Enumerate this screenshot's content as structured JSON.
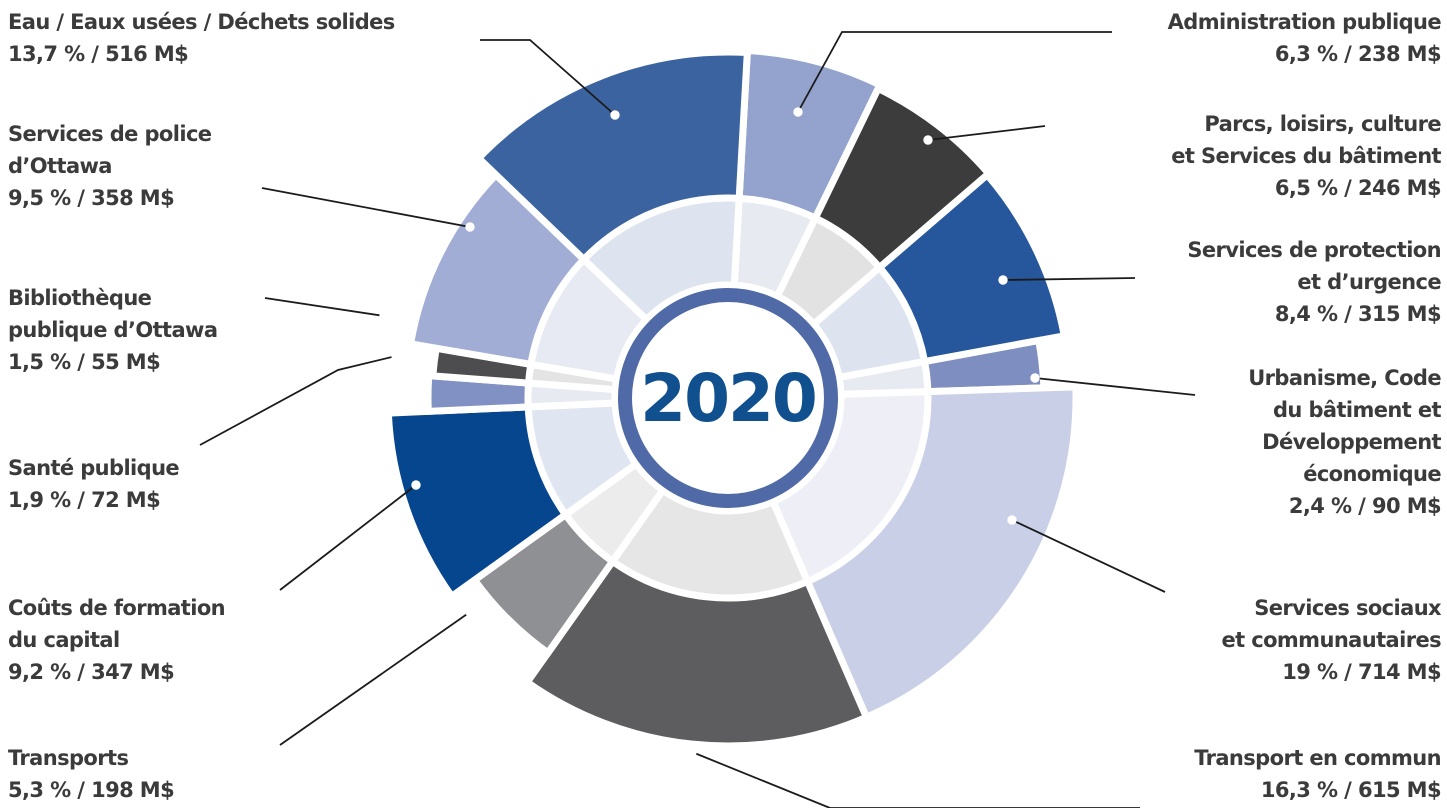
{
  "chart_data": {
    "type": "pie",
    "center_label": "2020",
    "slices": [
      {
        "name": "Administration publique",
        "label_lines": [
          "Administration publique"
        ],
        "percent": 6.3,
        "percent_text": "6,3 %",
        "amount_text": "238 M$",
        "amount": 238,
        "color": "#94a3cd"
      },
      {
        "name": "Parcs, loisirs, culture et Services du bâtiment",
        "label_lines": [
          "Parcs, loisirs, culture",
          "et Services du bâtiment"
        ],
        "percent": 6.5,
        "percent_text": "6,5 %",
        "amount_text": "246 M$",
        "amount": 246,
        "color": "#3c3c3c"
      },
      {
        "name": "Services de protection et d’urgence",
        "label_lines": [
          "Services de protection",
          "et d’urgence"
        ],
        "percent": 8.4,
        "percent_text": "8,4 %",
        "amount_text": "315 M$",
        "amount": 315,
        "color": "#26579c"
      },
      {
        "name": "Urbanisme, Code du bâtiment et Développement économique",
        "label_lines": [
          "Urbanisme, Code",
          "du bâtiment et",
          "Développement",
          "économique"
        ],
        "percent": 2.4,
        "percent_text": "2,4 %",
        "amount_text": "90 M$",
        "amount": 90,
        "color": "#7f8ec0"
      },
      {
        "name": "Services sociaux et communautaires",
        "label_lines": [
          "Services sociaux",
          "et communautaires"
        ],
        "percent": 19,
        "percent_text": "19 %",
        "amount_text": "714 M$",
        "amount": 714,
        "color": "#c8cfe6"
      },
      {
        "name": "Transport en commun",
        "label_lines": [
          "Transport en commun"
        ],
        "percent": 16.3,
        "percent_text": "16,3 %",
        "amount_text": "615 M$",
        "amount": 615,
        "color": "#5d5d5f"
      },
      {
        "name": "Transports",
        "label_lines": [
          "Transports"
        ],
        "percent": 5.3,
        "percent_text": "5,3 %",
        "amount_text": "198 M$",
        "amount": 198,
        "color": "#8f9094"
      },
      {
        "name": "Coûts de formation du capital",
        "label_lines": [
          "Coûts de formation",
          "du capital"
        ],
        "percent": 9.2,
        "percent_text": "9,2 %",
        "amount_text": "347 M$",
        "amount": 347,
        "color": "#05468f"
      },
      {
        "name": "Santé publique",
        "label_lines": [
          "Santé publique"
        ],
        "percent": 1.9,
        "percent_text": "1,9 %",
        "amount_text": "72 M$",
        "amount": 72,
        "color": "#8291c4"
      },
      {
        "name": "Bibliothèque publique d’Ottawa",
        "label_lines": [
          "Bibliothèque",
          "publique d’Ottawa"
        ],
        "percent": 1.5,
        "percent_text": "1,5 %",
        "amount_text": "55 M$",
        "amount": 55,
        "color": "#4d4d4f"
      },
      {
        "name": "Services de police d’Ottawa",
        "label_lines": [
          "Services de police",
          "d’Ottawa"
        ],
        "percent": 9.5,
        "percent_text": "9,5 %",
        "amount_text": "358 M$",
        "amount": 358,
        "color": "#a1add4"
      },
      {
        "name": "Eau / Eaux usées / Déchets solides",
        "label_lines": [
          "Eau / Eaux usées / Déchets solides"
        ],
        "percent": 13.7,
        "percent_text": "13,7 %",
        "amount_text": "516 M$",
        "amount": 516,
        "color": "#3b63a0"
      }
    ]
  }
}
